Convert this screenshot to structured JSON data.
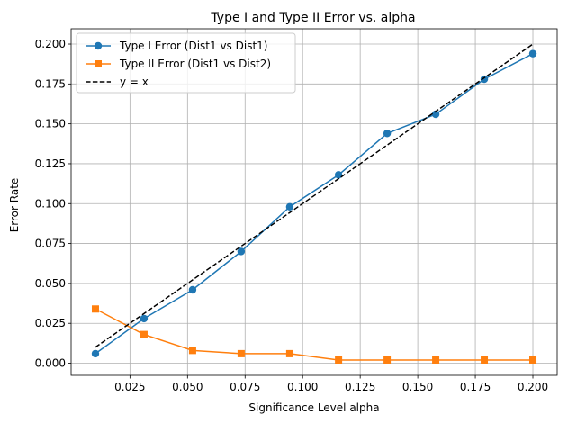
{
  "chart_data": {
    "type": "line",
    "title": "Type I and Type II Error vs. alpha",
    "xlabel": "Significance Level alpha",
    "ylabel": "Error Rate",
    "xlim": [
      -0.00055,
      0.21055
    ],
    "ylim": [
      -0.0076,
      0.2096
    ],
    "x_ticks": [
      0.025,
      0.05,
      0.075,
      0.1,
      0.125,
      0.15,
      0.175,
      0.2
    ],
    "y_ticks": [
      0.0,
      0.025,
      0.05,
      0.075,
      0.1,
      0.125,
      0.15,
      0.175,
      0.2
    ],
    "x_tick_labels": [
      "0.025",
      "0.050",
      "0.075",
      "0.100",
      "0.125",
      "0.150",
      "0.175",
      "0.200"
    ],
    "y_tick_labels": [
      "0.000",
      "0.025",
      "0.050",
      "0.075",
      "0.100",
      "0.125",
      "0.150",
      "0.175",
      "0.200"
    ],
    "grid": true,
    "legend_position": "top-left",
    "x": [
      0.01,
      0.0311,
      0.0522,
      0.0733,
      0.0944,
      0.1156,
      0.1367,
      0.1578,
      0.1789,
      0.2
    ],
    "series": [
      {
        "name": "Type I Error (Dist1 vs Dist1)",
        "color": "#1f77b4",
        "marker": "circle",
        "line_style": "solid",
        "values": [
          0.006,
          0.028,
          0.046,
          0.07,
          0.098,
          0.118,
          0.144,
          0.156,
          0.178,
          0.194
        ]
      },
      {
        "name": "Type II Error (Dist1 vs Dist2)",
        "color": "#ff7f0e",
        "marker": "square",
        "line_style": "solid",
        "values": [
          0.034,
          0.018,
          0.008,
          0.006,
          0.006,
          0.002,
          0.002,
          0.002,
          0.002,
          0.002
        ]
      },
      {
        "name": "y = x",
        "color": "#000000",
        "marker": "none",
        "line_style": "dashed",
        "values": [
          0.01,
          0.0311,
          0.0522,
          0.0733,
          0.0944,
          0.1156,
          0.1367,
          0.1578,
          0.1789,
          0.2
        ]
      }
    ]
  }
}
